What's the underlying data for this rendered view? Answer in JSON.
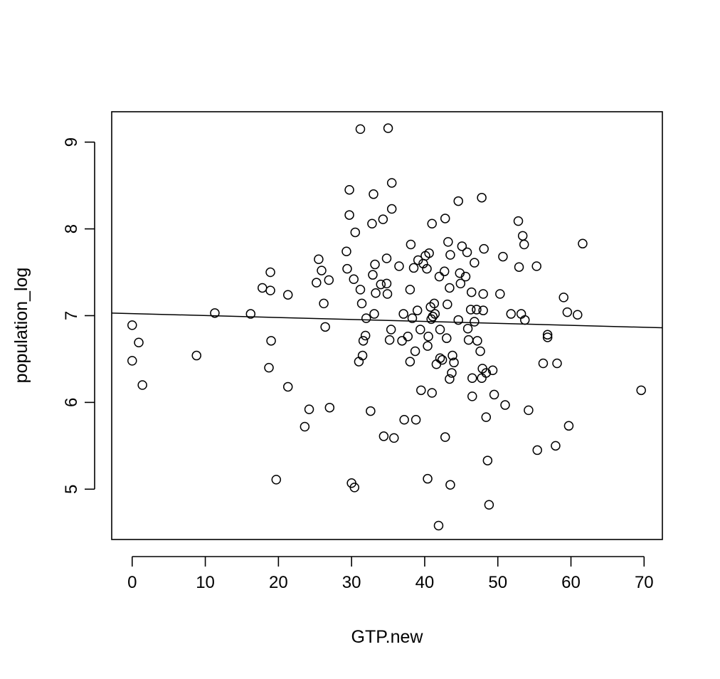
{
  "chart_data": {
    "type": "scatter",
    "title": "",
    "xlabel": "GTP.new",
    "ylabel": "population_log",
    "xlim": [
      -2.8,
      72.5
    ],
    "ylim": [
      4.42,
      9.35
    ],
    "x_ticks": [
      0,
      10,
      20,
      30,
      40,
      50,
      60,
      70
    ],
    "y_ticks": [
      5,
      6,
      7,
      8,
      9
    ],
    "grid": false,
    "legend": "none",
    "trend_line": {
      "x": [
        -2.8,
        72.5
      ],
      "y": [
        7.03,
        6.86
      ]
    },
    "series": [
      {
        "marker": "open-circle",
        "color": "#000000",
        "points": [
          [
            0,
            6.89
          ],
          [
            0,
            6.48
          ],
          [
            0.9,
            6.69
          ],
          [
            1.4,
            6.2
          ],
          [
            8.8,
            6.54
          ],
          [
            11.3,
            7.03
          ],
          [
            16.2,
            7.02
          ],
          [
            17.8,
            7.32
          ],
          [
            18.9,
            7.5
          ],
          [
            18.9,
            7.29
          ],
          [
            19.0,
            6.71
          ],
          [
            18.7,
            6.4
          ],
          [
            19.7,
            5.11
          ],
          [
            21.3,
            7.24
          ],
          [
            21.3,
            6.18
          ],
          [
            23.6,
            5.72
          ],
          [
            24.2,
            5.92
          ],
          [
            25.2,
            7.38
          ],
          [
            25.5,
            7.65
          ],
          [
            25.9,
            7.52
          ],
          [
            26.2,
            7.14
          ],
          [
            26.4,
            6.87
          ],
          [
            26.9,
            7.41
          ],
          [
            27.0,
            5.94
          ],
          [
            29.3,
            7.74
          ],
          [
            29.4,
            7.54
          ],
          [
            29.7,
            8.45
          ],
          [
            29.7,
            8.16
          ],
          [
            30.0,
            5.07
          ],
          [
            30.4,
            5.02
          ],
          [
            30.3,
            7.42
          ],
          [
            30.5,
            7.96
          ],
          [
            31.0,
            6.47
          ],
          [
            31.2,
            9.15
          ],
          [
            31.2,
            7.3
          ],
          [
            31.4,
            7.14
          ],
          [
            31.5,
            6.54
          ],
          [
            31.6,
            6.71
          ],
          [
            31.9,
            6.77
          ],
          [
            32.0,
            6.97
          ],
          [
            32.6,
            5.9
          ],
          [
            32.8,
            8.06
          ],
          [
            32.9,
            7.47
          ],
          [
            33.0,
            8.4
          ],
          [
            33.1,
            7.02
          ],
          [
            33.2,
            7.59
          ],
          [
            33.3,
            7.26
          ],
          [
            34.0,
            7.36
          ],
          [
            34.3,
            8.11
          ],
          [
            34.4,
            5.61
          ],
          [
            34.8,
            7.66
          ],
          [
            34.8,
            7.37
          ],
          [
            34.9,
            7.25
          ],
          [
            35.0,
            9.16
          ],
          [
            35.2,
            6.72
          ],
          [
            35.4,
            6.84
          ],
          [
            35.5,
            8.53
          ],
          [
            35.5,
            8.23
          ],
          [
            35.8,
            5.59
          ],
          [
            36.5,
            7.57
          ],
          [
            36.9,
            6.71
          ],
          [
            37.1,
            7.02
          ],
          [
            37.2,
            5.8
          ],
          [
            37.7,
            6.76
          ],
          [
            38.0,
            7.3
          ],
          [
            38.0,
            6.47
          ],
          [
            38.1,
            7.82
          ],
          [
            38.3,
            6.97
          ],
          [
            38.5,
            7.55
          ],
          [
            38.7,
            6.59
          ],
          [
            38.8,
            5.8
          ],
          [
            39.0,
            7.06
          ],
          [
            39.1,
            7.64
          ],
          [
            39.4,
            6.84
          ],
          [
            39.5,
            6.14
          ],
          [
            39.8,
            7.6
          ],
          [
            40.1,
            7.69
          ],
          [
            40.3,
            7.54
          ],
          [
            40.4,
            6.65
          ],
          [
            40.4,
            5.12
          ],
          [
            40.5,
            6.76
          ],
          [
            40.6,
            7.72
          ],
          [
            40.8,
            7.1
          ],
          [
            40.9,
            6.96
          ],
          [
            41.0,
            8.06
          ],
          [
            41.0,
            6.11
          ],
          [
            41.1,
            6.99
          ],
          [
            41.3,
            7.14
          ],
          [
            41.4,
            7.02
          ],
          [
            41.6,
            6.44
          ],
          [
            41.9,
            4.58
          ],
          [
            42.0,
            7.45
          ],
          [
            42.1,
            6.84
          ],
          [
            42.1,
            6.51
          ],
          [
            42.4,
            6.49
          ],
          [
            42.7,
            7.51
          ],
          [
            42.8,
            8.12
          ],
          [
            42.8,
            5.6
          ],
          [
            43.0,
            6.74
          ],
          [
            43.1,
            7.13
          ],
          [
            43.2,
            7.85
          ],
          [
            43.4,
            7.32
          ],
          [
            43.4,
            6.27
          ],
          [
            43.5,
            7.7
          ],
          [
            43.5,
            5.05
          ],
          [
            43.7,
            6.34
          ],
          [
            43.8,
            6.54
          ],
          [
            44.0,
            6.46
          ],
          [
            44.6,
            8.32
          ],
          [
            44.6,
            6.95
          ],
          [
            44.8,
            7.49
          ],
          [
            44.9,
            7.37
          ],
          [
            45.1,
            7.8
          ],
          [
            45.6,
            7.45
          ],
          [
            45.8,
            7.73
          ],
          [
            45.9,
            6.85
          ],
          [
            46.0,
            6.72
          ],
          [
            46.3,
            7.07
          ],
          [
            46.4,
            7.27
          ],
          [
            46.5,
            6.28
          ],
          [
            46.5,
            6.07
          ],
          [
            46.8,
            7.61
          ],
          [
            46.8,
            6.93
          ],
          [
            47.1,
            7.07
          ],
          [
            47.2,
            6.71
          ],
          [
            47.6,
            6.59
          ],
          [
            47.8,
            8.36
          ],
          [
            47.8,
            6.28
          ],
          [
            47.9,
            6.39
          ],
          [
            48.0,
            7.25
          ],
          [
            48.0,
            7.06
          ],
          [
            48.1,
            7.77
          ],
          [
            48.4,
            6.34
          ],
          [
            48.4,
            5.83
          ],
          [
            48.6,
            5.33
          ],
          [
            48.8,
            4.82
          ],
          [
            49.3,
            6.37
          ],
          [
            49.5,
            6.09
          ],
          [
            50.3,
            7.25
          ],
          [
            50.7,
            7.68
          ],
          [
            51.0,
            5.97
          ],
          [
            51.8,
            7.02
          ],
          [
            52.8,
            8.09
          ],
          [
            52.9,
            7.56
          ],
          [
            53.2,
            7.02
          ],
          [
            53.4,
            7.92
          ],
          [
            53.6,
            7.82
          ],
          [
            53.7,
            6.95
          ],
          [
            54.2,
            5.91
          ],
          [
            55.3,
            7.57
          ],
          [
            55.4,
            5.45
          ],
          [
            56.2,
            6.45
          ],
          [
            56.8,
            6.78
          ],
          [
            56.8,
            6.75
          ],
          [
            57.9,
            5.5
          ],
          [
            58.1,
            6.45
          ],
          [
            59.0,
            7.21
          ],
          [
            59.5,
            7.04
          ],
          [
            59.7,
            5.73
          ],
          [
            60.9,
            7.01
          ],
          [
            61.6,
            7.83
          ],
          [
            69.6,
            6.14
          ]
        ]
      }
    ]
  }
}
